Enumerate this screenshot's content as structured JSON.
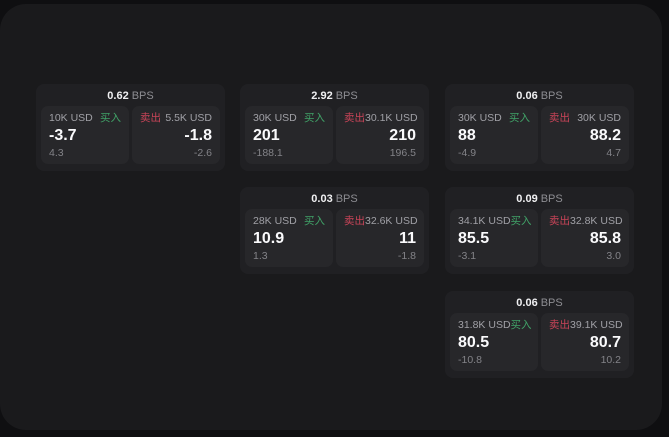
{
  "page": {
    "background": "#0f0f11",
    "panel_background": "#1a1a1c"
  },
  "colors": {
    "buy_green": "#41a368",
    "sell_red": "#c94458",
    "card_bg": "#202023",
    "tile_bg": "#27272a"
  },
  "labels": {
    "bps_unit": "BPS",
    "buy": "买入",
    "sell": "卖出"
  },
  "cards": [
    {
      "bps": "0.62",
      "buy": {
        "size": "10K USD",
        "price": "-3.7",
        "delta": "4.3"
      },
      "sell": {
        "size": "5.5K USD",
        "price": "-1.8",
        "delta": "-2.6"
      }
    },
    {
      "bps": "2.92",
      "buy": {
        "size": "30K USD",
        "price": "201",
        "delta": "-188.1"
      },
      "sell": {
        "size": "30.1K USD",
        "price": "210",
        "delta": "196.5"
      }
    },
    {
      "bps": "0.06",
      "buy": {
        "size": "30K USD",
        "price": "88",
        "delta": "-4.9"
      },
      "sell": {
        "size": "30K USD",
        "price": "88.2",
        "delta": "4.7"
      }
    },
    {
      "bps": "0.03",
      "buy": {
        "size": "28K USD",
        "price": "10.9",
        "delta": "1.3"
      },
      "sell": {
        "size": "32.6K USD",
        "price": "11",
        "delta": "-1.8"
      }
    },
    {
      "bps": "0.09",
      "buy": {
        "size": "34.1K USD",
        "price": "85.5",
        "delta": "-3.1"
      },
      "sell": {
        "size": "32.8K USD",
        "price": "85.8",
        "delta": "3.0"
      }
    },
    {
      "bps": "0.06",
      "buy": {
        "size": "31.8K USD",
        "price": "80.5",
        "delta": "-10.8"
      },
      "sell": {
        "size": "39.1K USD",
        "price": "80.7",
        "delta": "10.2"
      }
    }
  ]
}
